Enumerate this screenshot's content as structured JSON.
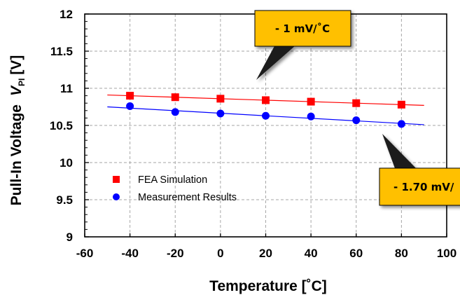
{
  "chart_data": {
    "type": "scatter",
    "xlabel": "Temperature [˚C]",
    "ylabel": "Pull-In Voltage",
    "ylabel_symbol": "V",
    "ylabel_subscript": "PI",
    "ylabel_unit": "[V]",
    "xlim": [
      -60,
      100
    ],
    "ylim": [
      9,
      12
    ],
    "x_ticks": [
      "-60",
      "-40",
      "-20",
      "0",
      "20",
      "40",
      "60",
      "80",
      "100"
    ],
    "y_ticks": [
      "9",
      "9.5",
      "10",
      "10.5",
      "11",
      "11.5",
      "12"
    ],
    "grid": true,
    "legend_position": "lower-left",
    "series": [
      {
        "name": "FEA Simulation",
        "marker": "square",
        "color": "#ff0000",
        "x": [
          -40,
          -20,
          0,
          20,
          40,
          60,
          80
        ],
        "y": [
          10.9,
          10.88,
          10.86,
          10.84,
          10.82,
          10.8,
          10.78
        ],
        "trendline": {
          "x": [
            -50,
            90
          ],
          "y": [
            10.91,
            10.77
          ],
          "color": "#ff0000"
        }
      },
      {
        "name": "Measurement Results",
        "marker": "circle",
        "color": "#0000ff",
        "x": [
          -40,
          -20,
          0,
          20,
          40,
          60,
          80
        ],
        "y": [
          10.76,
          10.68,
          10.66,
          10.63,
          10.62,
          10.57,
          10.52
        ],
        "trendline": {
          "x": [
            -50,
            90
          ],
          "y": [
            10.75,
            10.51
          ],
          "color": "#0000ff"
        }
      }
    ],
    "annotations": [
      {
        "text": "- 1 mV/˚C",
        "color": "#ffc000"
      },
      {
        "text": "- 1.70 mV/",
        "color": "#ffc000"
      }
    ]
  }
}
